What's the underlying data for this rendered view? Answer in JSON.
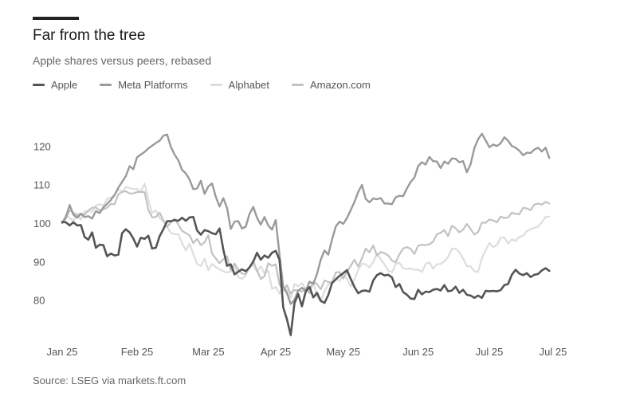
{
  "title": "Far from the tree",
  "subtitle": "Apple shares versus peers, rebased",
  "source": "Source: LSEG via markets.ft.com",
  "chart_data": {
    "type": "line",
    "title": "Far from the tree",
    "subtitle": "Apple shares versus peers, rebased",
    "xlabel": "",
    "ylabel": "",
    "ylim": [
      70,
      130
    ],
    "xlim": [
      0,
      131
    ],
    "yticks": [
      80,
      90,
      100,
      110,
      120
    ],
    "xticks": [
      {
        "label": "Jan 25",
        "at": 0
      },
      {
        "label": "Feb 25",
        "at": 20
      },
      {
        "label": "Mar 25",
        "at": 39
      },
      {
        "label": "Apr 25",
        "at": 57
      },
      {
        "label": "May 25",
        "at": 75
      },
      {
        "label": "Jun 25",
        "at": 95
      },
      {
        "label": "Jul 25",
        "at": 114
      },
      {
        "label": "Jul 25",
        "at": 131
      }
    ],
    "grid": false,
    "legend_position": "top-left",
    "series": [
      {
        "name": "Apple",
        "color": "#555555",
        "width": 2.6,
        "x": [
          0,
          1,
          2,
          3,
          4,
          5,
          6,
          7,
          8,
          9,
          10,
          11,
          12,
          13,
          14,
          15,
          16,
          17,
          18,
          19,
          20,
          21,
          22,
          23,
          24,
          25,
          26,
          27,
          28,
          29,
          30,
          31,
          32,
          33,
          34,
          35,
          36,
          37,
          38,
          39,
          40,
          41,
          42,
          43,
          44,
          45,
          46,
          47,
          48,
          49,
          50,
          51,
          52,
          53,
          54,
          55,
          56,
          57,
          58,
          59,
          60,
          61,
          62,
          63,
          64,
          65,
          66,
          67,
          68,
          69,
          70,
          71,
          72,
          73,
          74,
          75,
          76,
          77,
          78,
          79,
          80,
          81,
          82,
          83,
          84,
          85,
          86,
          87,
          88,
          89,
          90,
          91,
          92,
          93,
          94,
          95,
          96,
          97,
          98,
          99,
          100,
          101,
          102,
          103,
          104,
          105,
          106,
          107,
          108,
          109,
          110,
          111,
          112,
          113,
          114,
          115,
          116,
          117,
          118,
          119,
          120,
          121,
          122,
          123,
          124,
          125,
          126,
          127,
          128,
          129,
          130
        ],
        "y": [
          100.3,
          100.2,
          99.4,
          100.2,
          99.4,
          99.5,
          96.4,
          95.7,
          97.6,
          93.6,
          94.4,
          94.3,
          91.4,
          92.1,
          91.6,
          91.8,
          97.4,
          98.4,
          97.6,
          96.0,
          93.9,
          96.2,
          95.9,
          96.7,
          93.4,
          93.6,
          96.6,
          98.4,
          100.5,
          100.5,
          100.8,
          100.6,
          101.4,
          100.6,
          101.5,
          101.6,
          98.1,
          97.0,
          98.2,
          97.9,
          97.4,
          97.1,
          98.6,
          93.2,
          88.9,
          89.3,
          86.7,
          87.4,
          88.0,
          87.5,
          88.5,
          90.0,
          92.3,
          90.5,
          91.6,
          91.0,
          92.3,
          92.8,
          90.5,
          78.1,
          75.0,
          70.9,
          79.2,
          81.6,
          78.4,
          82.2,
          83.4,
          80.7,
          81.9,
          79.8,
          79.3,
          81.3,
          84.4,
          85.4,
          86.3,
          87.0,
          87.8,
          85.5,
          83.4,
          81.8,
          82.4,
          82.5,
          82.2,
          85.1,
          86.5,
          87.0,
          86.4,
          86.6,
          85.9,
          83.4,
          84.2,
          82.1,
          81.4,
          80.4,
          80.3,
          82.7,
          81.5,
          82.2,
          82.1,
          82.7,
          82.9,
          82.5,
          83.9,
          82.3,
          82.5,
          83.5,
          81.9,
          82.7,
          81.4,
          81.2,
          80.6,
          81.2,
          80.6,
          82.4,
          82.3,
          82.4,
          82.3,
          82.6,
          83.9,
          84.2,
          86.6,
          87.9,
          86.9,
          86.5,
          87.0,
          86.0,
          86.6,
          86.8,
          87.7,
          88.3,
          87.6
        ],
        "y_tail": []
      },
      {
        "name": "Meta Platforms",
        "color": "#9a9a9a",
        "width": 2.4,
        "x": [
          0,
          1,
          2,
          3,
          4,
          5,
          6,
          7,
          8,
          9,
          10,
          11,
          12,
          13,
          14,
          15,
          16,
          17,
          18,
          19,
          20,
          21,
          22,
          23,
          24,
          25,
          26,
          27,
          28,
          29,
          30,
          31,
          32,
          33,
          34,
          35,
          36,
          37,
          38,
          39,
          40,
          41,
          42,
          43,
          44,
          45,
          46,
          47,
          48,
          49,
          50,
          51,
          52,
          53,
          54,
          55,
          56,
          57,
          58,
          59,
          60,
          61,
          62,
          63,
          64,
          65,
          66,
          67,
          68,
          69,
          70,
          71,
          72,
          73,
          74,
          75,
          76,
          77,
          78,
          79,
          80,
          81,
          82,
          83,
          84,
          85,
          86,
          87,
          88,
          89,
          90,
          91,
          92,
          93,
          94,
          95,
          96,
          97,
          98,
          99,
          100,
          101,
          102,
          103,
          104,
          105,
          106,
          107,
          108,
          109,
          110,
          111,
          112,
          113,
          114,
          115,
          116,
          117,
          118,
          119,
          120,
          121,
          122,
          123,
          124,
          125,
          126,
          127,
          128,
          129,
          130
        ],
        "y": [
          100.0,
          101.6,
          104.7,
          102.2,
          101.4,
          102.4,
          101.6,
          101.8,
          101.2,
          103.1,
          102.6,
          104.1,
          105.0,
          106.0,
          107.3,
          109.2,
          110.7,
          112.2,
          114.8,
          114.0,
          117.1,
          117.8,
          118.5,
          119.4,
          120.1,
          120.8,
          121.4,
          122.7,
          123.0,
          119.8,
          117.8,
          116.3,
          113.8,
          112.9,
          111.3,
          108.8,
          109.0,
          111.0,
          107.6,
          109.5,
          110.3,
          106.8,
          104.3,
          106.5,
          103.9,
          98.5,
          100.4,
          100.5,
          98.6,
          99.1,
          102.4,
          104.2,
          101.4,
          99.6,
          101.6,
          99.4,
          98.3,
          100.8,
          91.9,
          83.5,
          81.8,
          79.0,
          80.1,
          82.5,
          83.2,
          82.4,
          84.8,
          84.2,
          86.8,
          90.5,
          92.9,
          91.8,
          95.7,
          99.1,
          100.4,
          99.8,
          101.3,
          103.4,
          105.5,
          108.1,
          109.9,
          106.3,
          105.4,
          106.4,
          106.2,
          106.5,
          105.1,
          105.1,
          104.9,
          106.7,
          107.1,
          107.0,
          109.0,
          110.7,
          111.8,
          114.8,
          115.8,
          115.2,
          117.2,
          116.1,
          116.0,
          114.3,
          116.0,
          115.4,
          116.8,
          116.7,
          115.8,
          116.1,
          113.2,
          115.3,
          119.5,
          121.8,
          123.2,
          121.5,
          119.7,
          120.4,
          120.0,
          120.7,
          122.3,
          121.4,
          120.0,
          119.6,
          118.8,
          117.6,
          118.3,
          118.2,
          119.1,
          119.6,
          118.6,
          119.6,
          116.9
        ],
        "y_tail": []
      },
      {
        "name": "Alphabet",
        "color": "#dddddd",
        "width": 2.2,
        "x": [
          0,
          1,
          2,
          3,
          4,
          5,
          6,
          7,
          8,
          9,
          10,
          11,
          12,
          13,
          14,
          15,
          16,
          17,
          18,
          19,
          20,
          21,
          22,
          23,
          24,
          25,
          26,
          27,
          28,
          29,
          30,
          31,
          32,
          33,
          34,
          35,
          36,
          37,
          38,
          39,
          40,
          41,
          42,
          43,
          44,
          45,
          46,
          47,
          48,
          49,
          50,
          51,
          52,
          53,
          54,
          55,
          56,
          57,
          58,
          59,
          60,
          61,
          62,
          63,
          64,
          65,
          66,
          67,
          68,
          69,
          70,
          71,
          72,
          73,
          74,
          75,
          76,
          77,
          78,
          79,
          80,
          81,
          82,
          83,
          84,
          85,
          86,
          87,
          88,
          89,
          90,
          91,
          92,
          93,
          94,
          95,
          96,
          97,
          98,
          99,
          100,
          101,
          102,
          103,
          104,
          105,
          106,
          107,
          108,
          109,
          110,
          111,
          112,
          113,
          114,
          115,
          116,
          117,
          118,
          119,
          120,
          121,
          122,
          123,
          124,
          125,
          126,
          127,
          128,
          129,
          130
        ],
        "y": [
          100.0,
          102.1,
          101.3,
          100.5,
          102.4,
          100.9,
          103.0,
          103.2,
          102.9,
          104.6,
          104.9,
          104.6,
          106.3,
          106.6,
          107.4,
          108.8,
          108.1,
          109.4,
          109.1,
          108.8,
          108.9,
          108.0,
          110.3,
          106.0,
          102.6,
          103.3,
          101.3,
          100.5,
          98.9,
          97.5,
          97.1,
          97.1,
          94.8,
          92.9,
          94.7,
          92.0,
          89.4,
          88.8,
          90.8,
          87.8,
          89.4,
          88.6,
          88.0,
          87.5,
          87.2,
          87.4,
          89.1,
          86.0,
          85.5,
          86.5,
          88.7,
          89.1,
          87.4,
          88.8,
          86.9,
          87.6,
          83.0,
          83.4,
          81.7,
          83.4,
          82.7,
          80.6,
          84.2,
          83.6,
          84.4,
          82.7,
          83.0,
          84.8,
          80.9,
          79.7,
          82.4,
          84.0,
          84.7,
          85.6,
          85.0,
          86.6,
          85.5,
          83.6,
          85.4,
          87.9,
          89.5,
          89.3,
          88.5,
          89.8,
          92.1,
          90.6,
          89.3,
          87.7,
          87.2,
          89.4,
          89.7,
          88.3,
          88.1,
          88.2,
          87.9,
          87.9,
          87.3,
          89.4,
          89.8,
          88.2,
          89.3,
          89.4,
          90.1,
          91.2,
          93.3,
          93.4,
          92.4,
          90.8,
          88.8,
          88.8,
          87.5,
          87.3,
          90.9,
          93.0,
          94.8,
          93.8,
          94.3,
          96.2,
          96.3,
          94.7,
          95.8,
          95.4,
          96.4,
          96.7,
          97.9,
          98.4,
          98.8,
          99.1,
          100.2,
          101.6,
          101.7
        ],
        "y_tail": []
      },
      {
        "name": "Amazon.com",
        "color": "#c2c2c2",
        "width": 2.2,
        "x": [
          0,
          1,
          2,
          3,
          4,
          5,
          6,
          7,
          8,
          9,
          10,
          11,
          12,
          13,
          14,
          15,
          16,
          17,
          18,
          19,
          20,
          21,
          22,
          23,
          24,
          25,
          26,
          27,
          28,
          29,
          30,
          31,
          32,
          33,
          34,
          35,
          36,
          37,
          38,
          39,
          40,
          41,
          42,
          43,
          44,
          45,
          46,
          47,
          48,
          49,
          50,
          51,
          52,
          53,
          54,
          55,
          56,
          57,
          58,
          59,
          60,
          61,
          62,
          63,
          64,
          65,
          66,
          67,
          68,
          69,
          70,
          71,
          72,
          73,
          74,
          75,
          76,
          77,
          78,
          79,
          80,
          81,
          82,
          83,
          84,
          85,
          86,
          87,
          88,
          89,
          90,
          91,
          92,
          93,
          94,
          95,
          96,
          97,
          98,
          99,
          100,
          101,
          102,
          103,
          104,
          105,
          106,
          107,
          108,
          109,
          110,
          111,
          112,
          113,
          114,
          115,
          116,
          117,
          118,
          119,
          120,
          121,
          122,
          123,
          124,
          125,
          126,
          127,
          128,
          129,
          130
        ],
        "y": [
          100.0,
          101.2,
          103.3,
          102.7,
          102.1,
          102.5,
          102.2,
          103.3,
          104.0,
          104.1,
          103.3,
          103.6,
          104.0,
          105.0,
          104.9,
          107.5,
          108.1,
          108.3,
          107.7,
          107.7,
          108.1,
          108.1,
          108.0,
          103.4,
          101.5,
          101.6,
          102.7,
          100.7,
          99.0,
          100.2,
          101.1,
          99.6,
          98.0,
          97.4,
          96.8,
          94.8,
          95.9,
          94.3,
          95.0,
          96.9,
          92.1,
          90.8,
          89.6,
          90.6,
          91.4,
          87.7,
          89.5,
          87.9,
          86.9,
          86.8,
          88.5,
          90.2,
          87.7,
          85.5,
          86.2,
          89.6,
          88.9,
          89.3,
          84.1,
          82.5,
          83.9,
          81.7,
          82.6,
          82.6,
          82.2,
          83.1,
          81.8,
          84.8,
          84.2,
          82.8,
          85.1,
          84.7,
          84.6,
          87.2,
          87.3,
          85.6,
          87.4,
          88.9,
          90.5,
          88.7,
          90.9,
          93.4,
          92.4,
          94.2,
          91.6,
          92.5,
          92.2,
          91.6,
          90.3,
          89.8,
          91.9,
          93.4,
          93.8,
          93.3,
          92.0,
          94.1,
          94.4,
          94.3,
          94.5,
          95.2,
          97.1,
          97.5,
          98.2,
          96.6,
          99.3,
          98.7,
          97.6,
          98.3,
          99.8,
          98.5,
          97.0,
          97.7,
          100.1,
          100.1,
          100.9,
          100.7,
          100.2,
          101.7,
          101.3,
          101.5,
          102.7,
          102.4,
          102.3,
          104.0,
          103.8,
          103.4,
          104.8,
          105.1,
          104.8,
          105.5,
          105.1
        ],
        "y_tail": []
      }
    ]
  }
}
